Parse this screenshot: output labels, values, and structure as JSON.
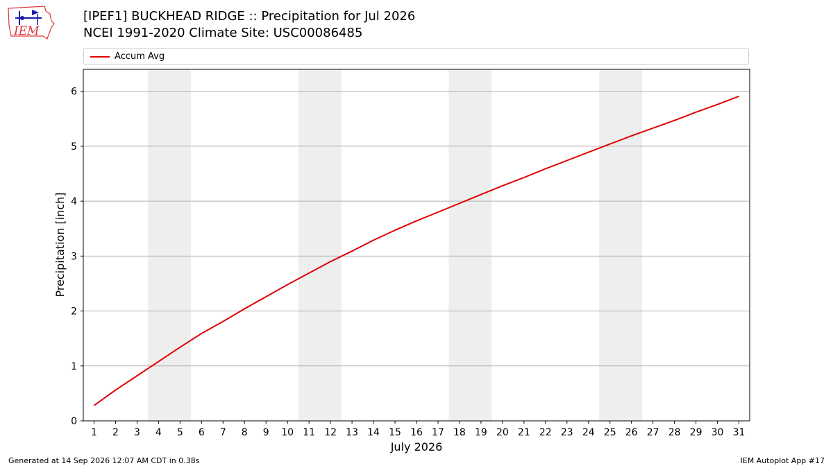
{
  "header": {
    "title_line1": "[IPEF1] BUCKHEAD RIDGE :: Precipitation for Jul 2026",
    "title_line2": "NCEI 1991-2020 Climate Site: USC00086485"
  },
  "logo": {
    "text": "IEM",
    "icon": "iem-logo-icon"
  },
  "legend": {
    "entries": [
      {
        "label": "Accum Avg",
        "color": "#e00000"
      }
    ],
    "placement": "top"
  },
  "footer": {
    "generated": "Generated at 14 Sep 2026 12:07 AM CDT in 0.38s",
    "app": "IEM Autoplot App #17"
  },
  "chart_data": {
    "type": "line",
    "title": "[IPEF1] BUCKHEAD RIDGE :: Precipitation for Jul 2026",
    "subtitle": "NCEI 1991-2020 Climate Site: USC00086485",
    "xlabel": "July 2026",
    "ylabel": "Precipitation [inch]",
    "xlim": [
      0.5,
      31.5
    ],
    "ylim": [
      0,
      6.4
    ],
    "x": [
      1,
      2,
      3,
      4,
      5,
      6,
      7,
      8,
      9,
      10,
      11,
      12,
      13,
      14,
      15,
      16,
      17,
      18,
      19,
      20,
      21,
      22,
      23,
      24,
      25,
      26,
      27,
      28,
      29,
      30,
      31
    ],
    "xticks": [
      "1",
      "2",
      "3",
      "4",
      "5",
      "6",
      "7",
      "8",
      "9",
      "10",
      "11",
      "12",
      "13",
      "14",
      "15",
      "16",
      "17",
      "18",
      "19",
      "20",
      "21",
      "22",
      "23",
      "24",
      "25",
      "26",
      "27",
      "28",
      "29",
      "30",
      "31"
    ],
    "yticks": [
      0,
      1,
      2,
      3,
      4,
      5,
      6
    ],
    "grid": "y",
    "weekend_shading": [
      [
        3.5,
        5.5
      ],
      [
        10.5,
        12.5
      ],
      [
        17.5,
        19.5
      ],
      [
        24.5,
        26.5
      ]
    ],
    "series": [
      {
        "name": "Accum Avg",
        "color": "#e00000",
        "values": [
          0.28,
          0.56,
          0.82,
          1.08,
          1.34,
          1.59,
          1.81,
          2.04,
          2.26,
          2.48,
          2.69,
          2.9,
          3.09,
          3.29,
          3.47,
          3.64,
          3.8,
          3.96,
          4.12,
          4.28,
          4.43,
          4.59,
          4.74,
          4.89,
          5.04,
          5.19,
          5.33,
          5.47,
          5.62,
          5.76,
          5.91
        ]
      }
    ]
  }
}
